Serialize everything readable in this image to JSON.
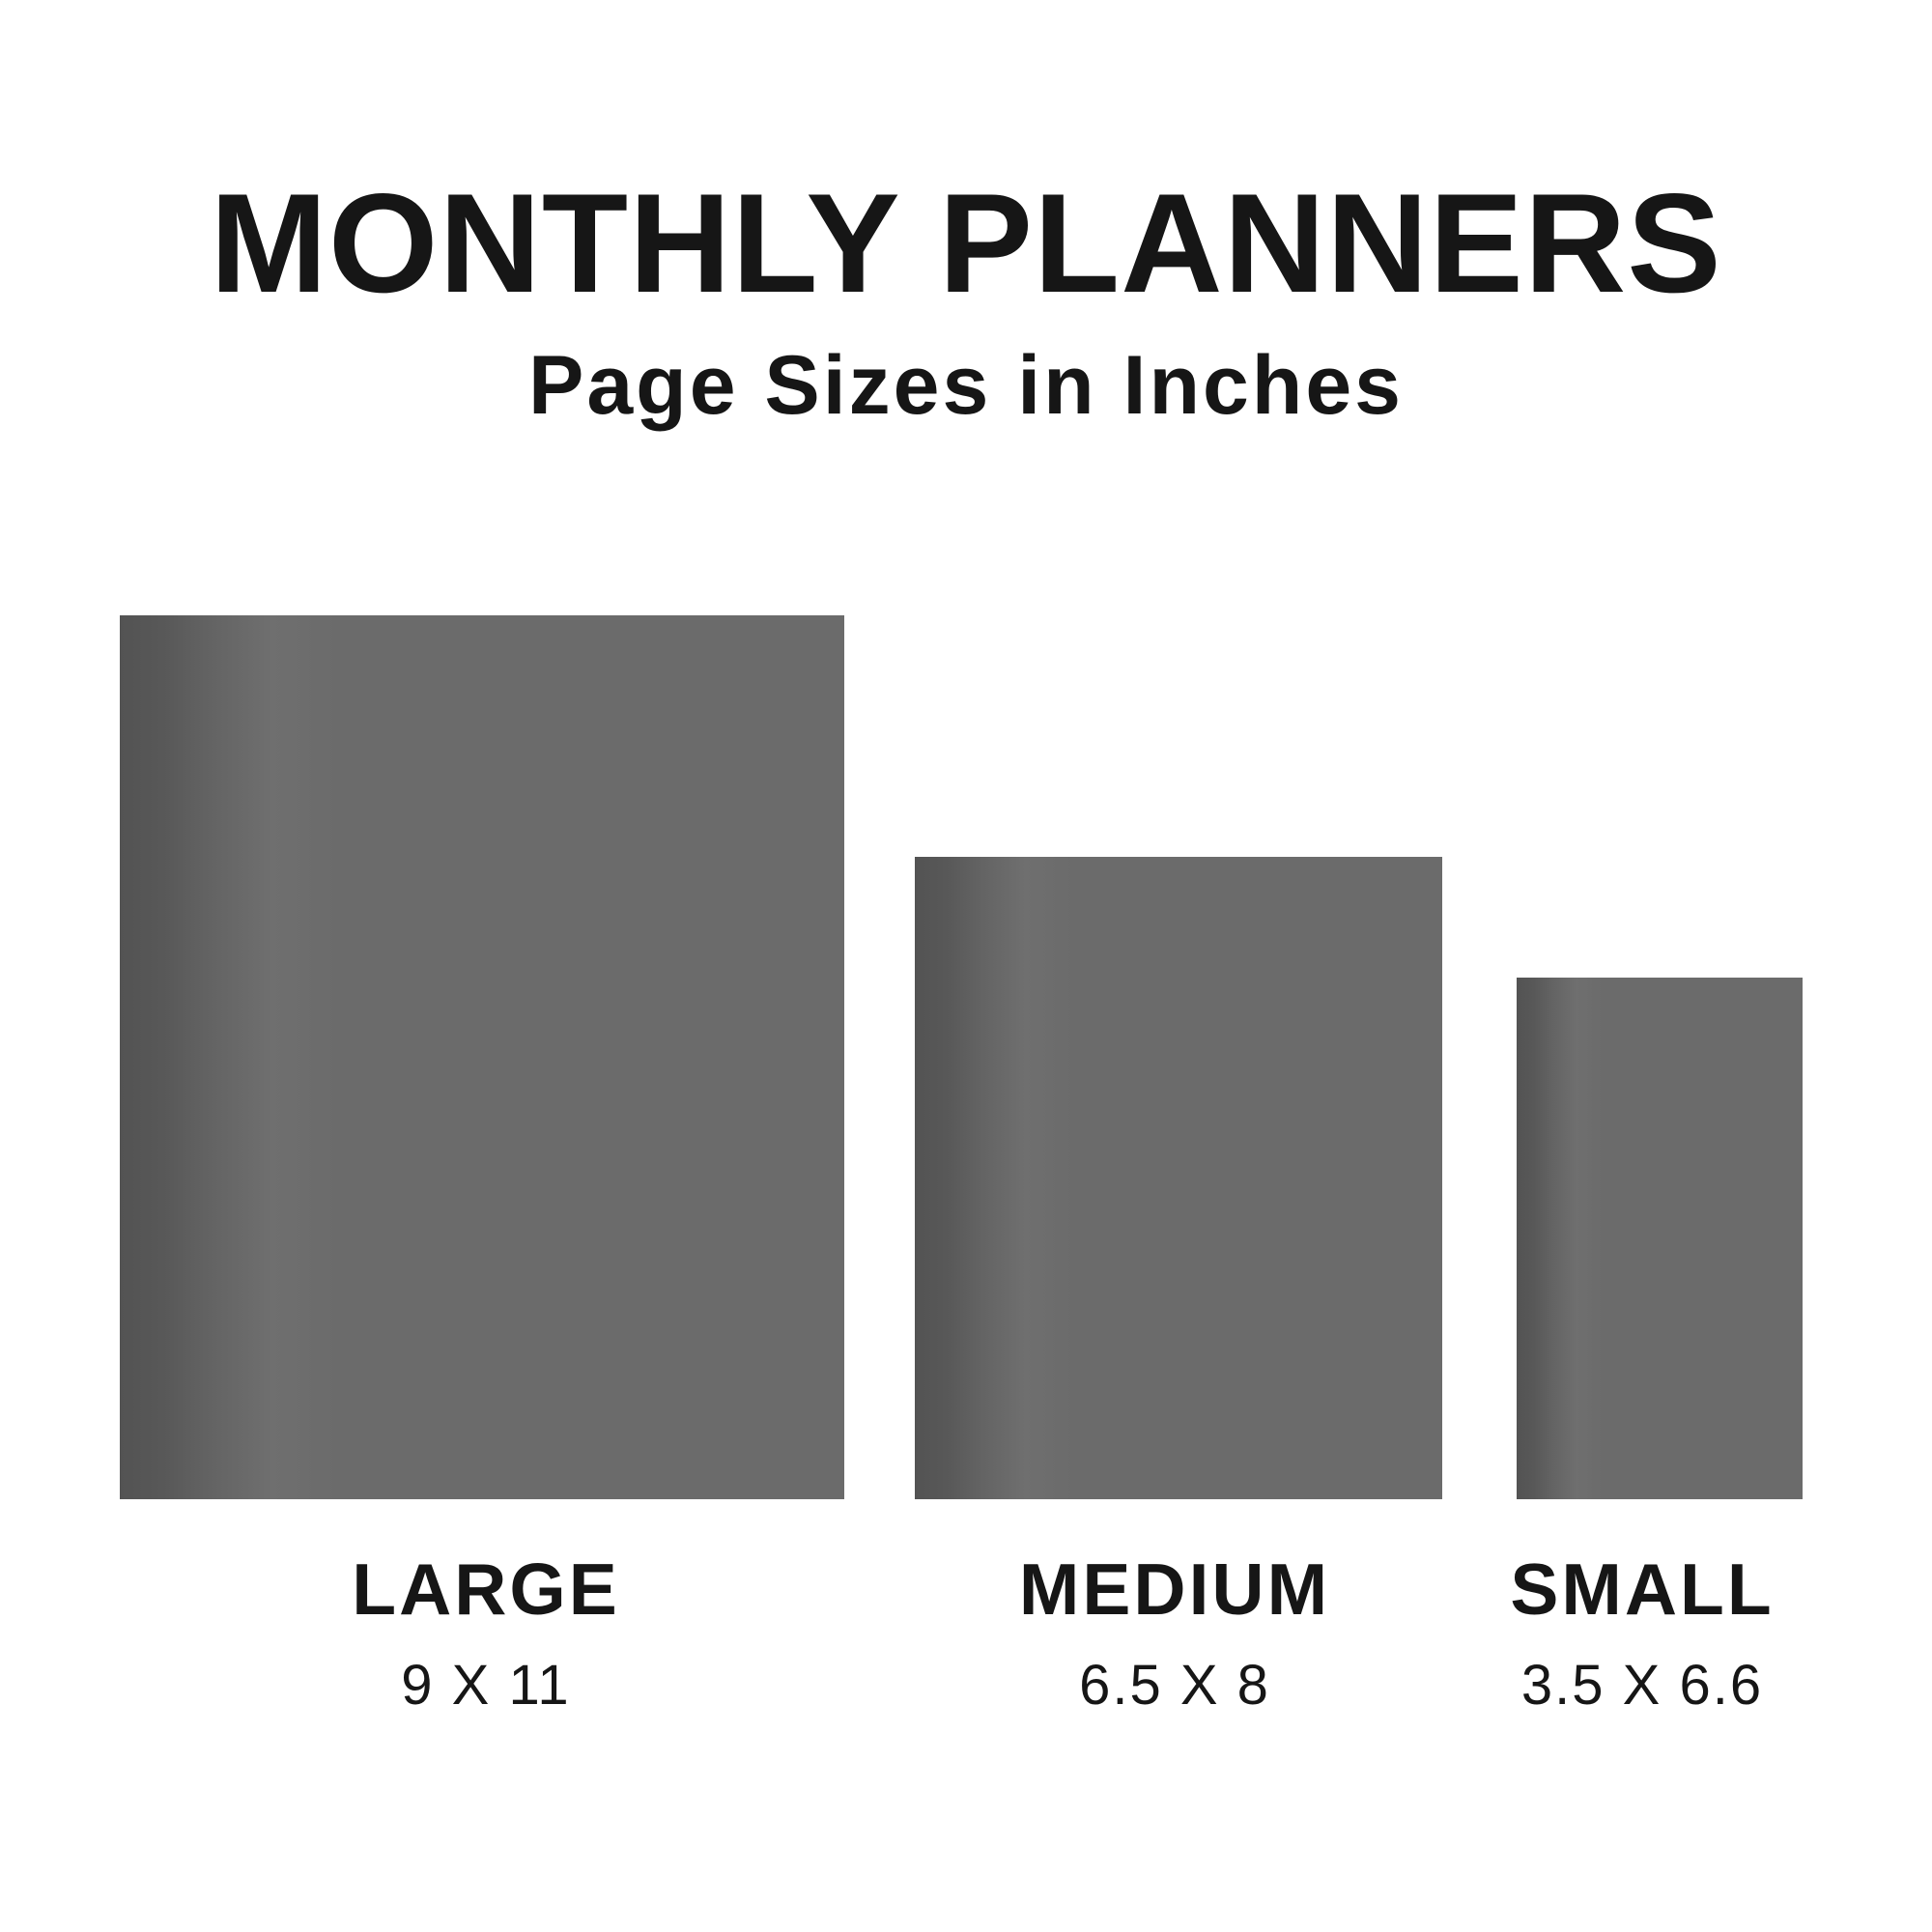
{
  "title": "MONTHLY PLANNERS",
  "subtitle": "Page Sizes in Inches",
  "colors": {
    "background": "#ffffff",
    "text": "#161616",
    "page_body": "#6b6b6b",
    "page_spine": "#535353"
  },
  "planners": [
    {
      "name": "LARGE",
      "size_label": "9 X 11",
      "width_inches": 9,
      "height_inches": 11
    },
    {
      "name": "MEDIUM",
      "size_label": "6.5 X 8",
      "width_inches": 6.5,
      "height_inches": 8
    },
    {
      "name": "SMALL",
      "size_label": "3.5 X 6.6",
      "width_inches": 3.5,
      "height_inches": 6.6
    }
  ]
}
